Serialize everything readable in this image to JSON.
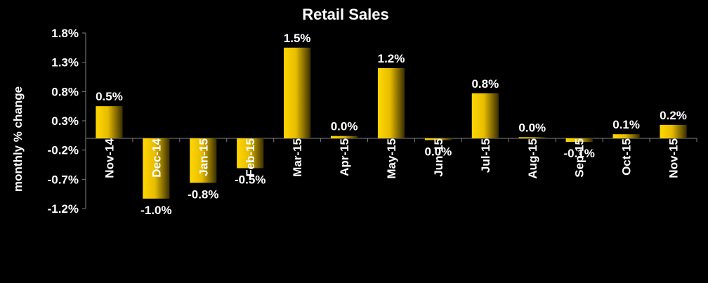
{
  "chart_data": {
    "type": "bar",
    "title": "Retail Sales",
    "xlabel": "",
    "ylabel": "monthly % change",
    "categories": [
      "Nov-14",
      "Dec-14",
      "Jan-15",
      "Feb-15",
      "Mar-15",
      "Apr-15",
      "May-15",
      "Jun-15",
      "Jul-15",
      "Aug-15",
      "Sep-15",
      "Oct-15",
      "Nov-15"
    ],
    "values": [
      0.55,
      -1.03,
      -0.76,
      -0.51,
      1.55,
      0.04,
      1.2,
      -0.03,
      0.77,
      0.02,
      -0.06,
      0.07,
      0.23
    ],
    "data_labels": [
      "0.5%",
      "-1.0%",
      "-0.8%",
      "-0.5%",
      "1.5%",
      "0.0%",
      "1.2%",
      "0.0%",
      "0.8%",
      "0.0%",
      "-0.1%",
      "0.1%",
      "0.2%"
    ],
    "yticks": [
      -1.2,
      -0.7,
      -0.2,
      0.3,
      0.8,
      1.3,
      1.8
    ],
    "ytick_labels": [
      "-1.2%",
      "-0.7%",
      "-0.2%",
      "0.3%",
      "0.8%",
      "1.3%",
      "1.8%"
    ],
    "ylim": [
      -1.2,
      1.8
    ],
    "grid": false,
    "legend": "none",
    "colors": {
      "background": "#000000",
      "bar_light": "#ffd700",
      "bar_dark": "#3a2e00",
      "axis": "#808080",
      "text": "#ffffff"
    }
  }
}
